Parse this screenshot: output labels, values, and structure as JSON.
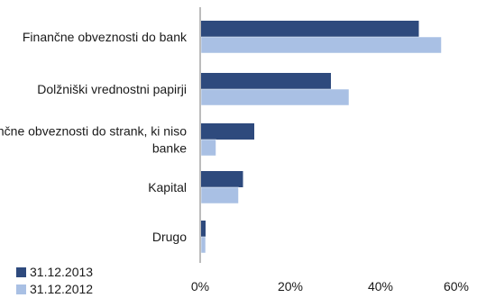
{
  "chart_data": {
    "type": "bar",
    "orientation": "horizontal",
    "categories": [
      "Finančne obveznosti do bank",
      "Dolžniški vrednostni papirji",
      "Finančne obveznosti do strank, ki niso banke",
      "Kapital",
      "Drugo"
    ],
    "category_lines": [
      [
        "Finančne obveznosti do bank"
      ],
      [
        "Dolžniški vrednostni papirji"
      ],
      [
        "Finančne obveznosti do strank, ki niso",
        "banke"
      ],
      [
        "Kapital"
      ],
      [
        "Drugo"
      ]
    ],
    "series": [
      {
        "name": "31.12.2013",
        "color": "#2e4a7d",
        "values": [
          48.5,
          29,
          12,
          9.5,
          1.2
        ]
      },
      {
        "name": "31.12.2012",
        "color": "#a9c0e4",
        "values": [
          53.5,
          33,
          3.5,
          8.5,
          1.2
        ]
      }
    ],
    "xlim": [
      0,
      60
    ],
    "xticks": [
      "0%",
      "20%",
      "40%",
      "60%"
    ],
    "legend_position": "bottom-left",
    "grid": false
  }
}
